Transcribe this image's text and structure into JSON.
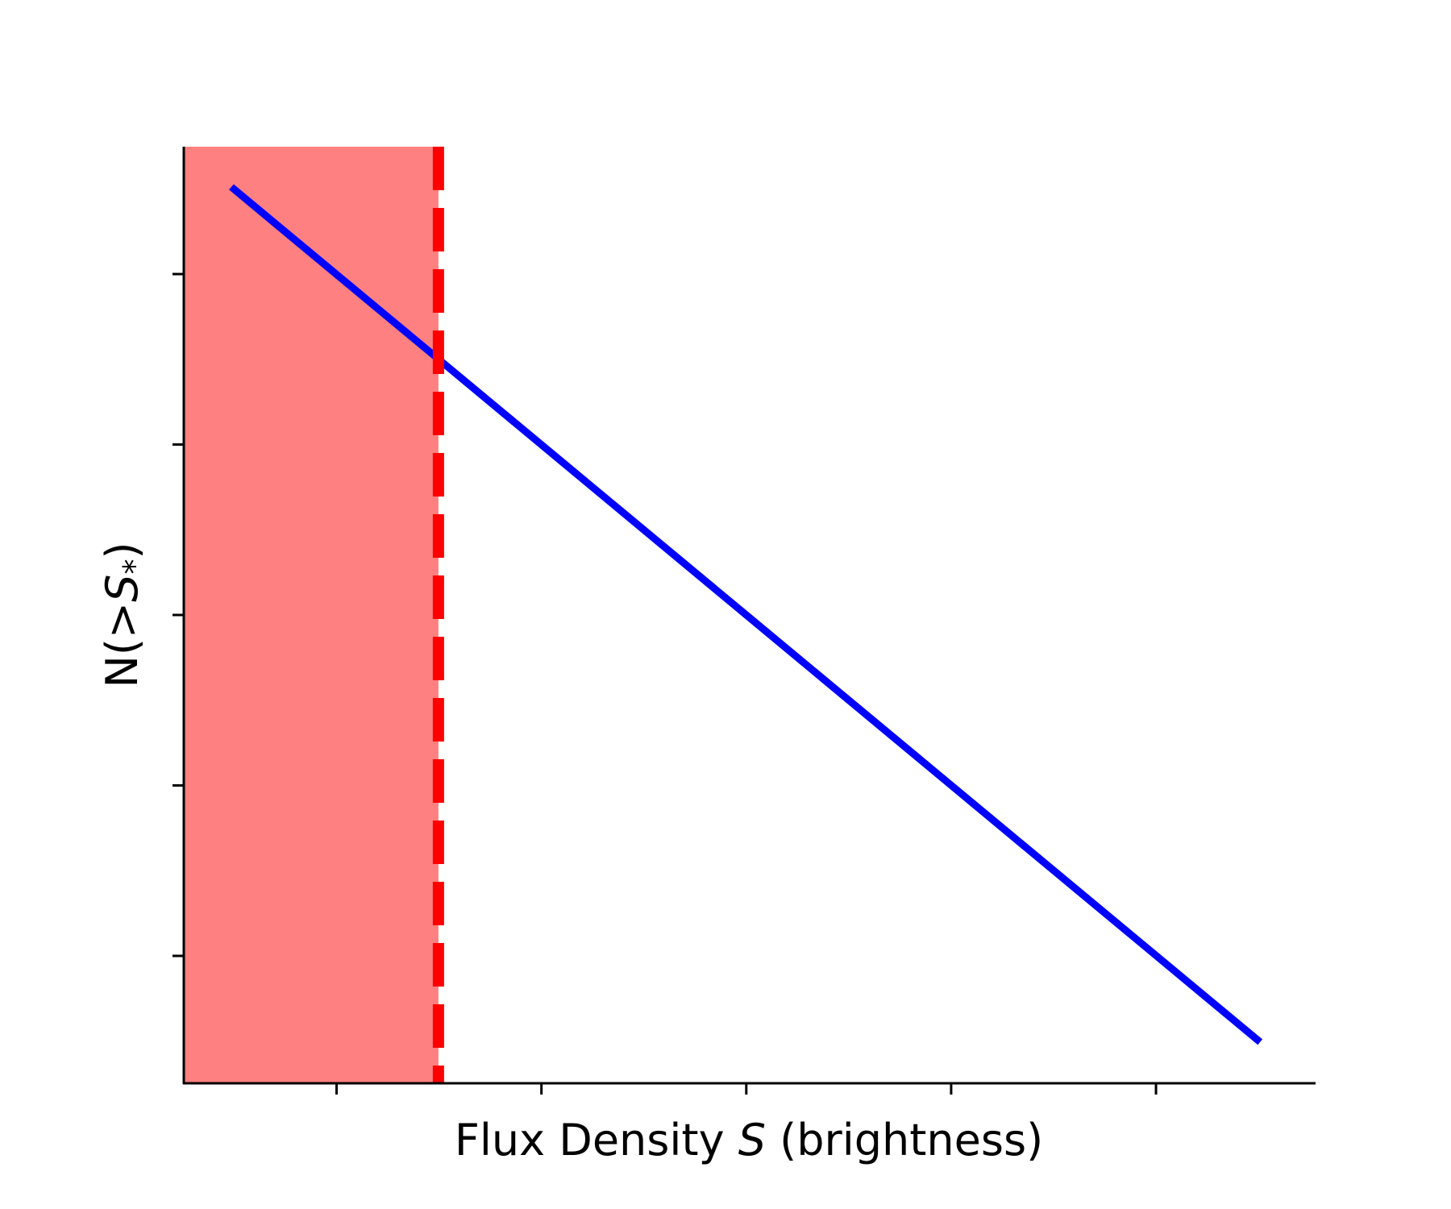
{
  "chart_data": {
    "type": "line",
    "xlabel": "Flux Density S (brightness)",
    "xlabel_parts": {
      "before": "Flux Density ",
      "italic": "S",
      "after": " (brightness)"
    },
    "ylabel": "N(>S*)",
    "ylabel_parts": {
      "before": "N(",
      "italic": ">S",
      "sub": "*",
      "after": ")"
    },
    "xlim": [
      0,
      1
    ],
    "ylim": [
      0,
      1
    ],
    "x_ticks": [
      0.135,
      0.316,
      0.497,
      0.678,
      0.859
    ],
    "y_ticks": [
      0.136,
      0.318,
      0.5,
      0.682,
      0.864
    ],
    "tick_labels_shown": false,
    "grid": false,
    "series": [
      {
        "x": [
          0.042,
          0.951
        ],
        "y": [
          0.957,
          0.044
        ],
        "color": "#0000ff",
        "style": "solid"
      }
    ],
    "vline": {
      "x": 0.225,
      "color": "#ff0000",
      "style": "dashed"
    },
    "shaded_region": {
      "x": [
        0,
        0.225
      ],
      "color": "#ff8080"
    }
  }
}
